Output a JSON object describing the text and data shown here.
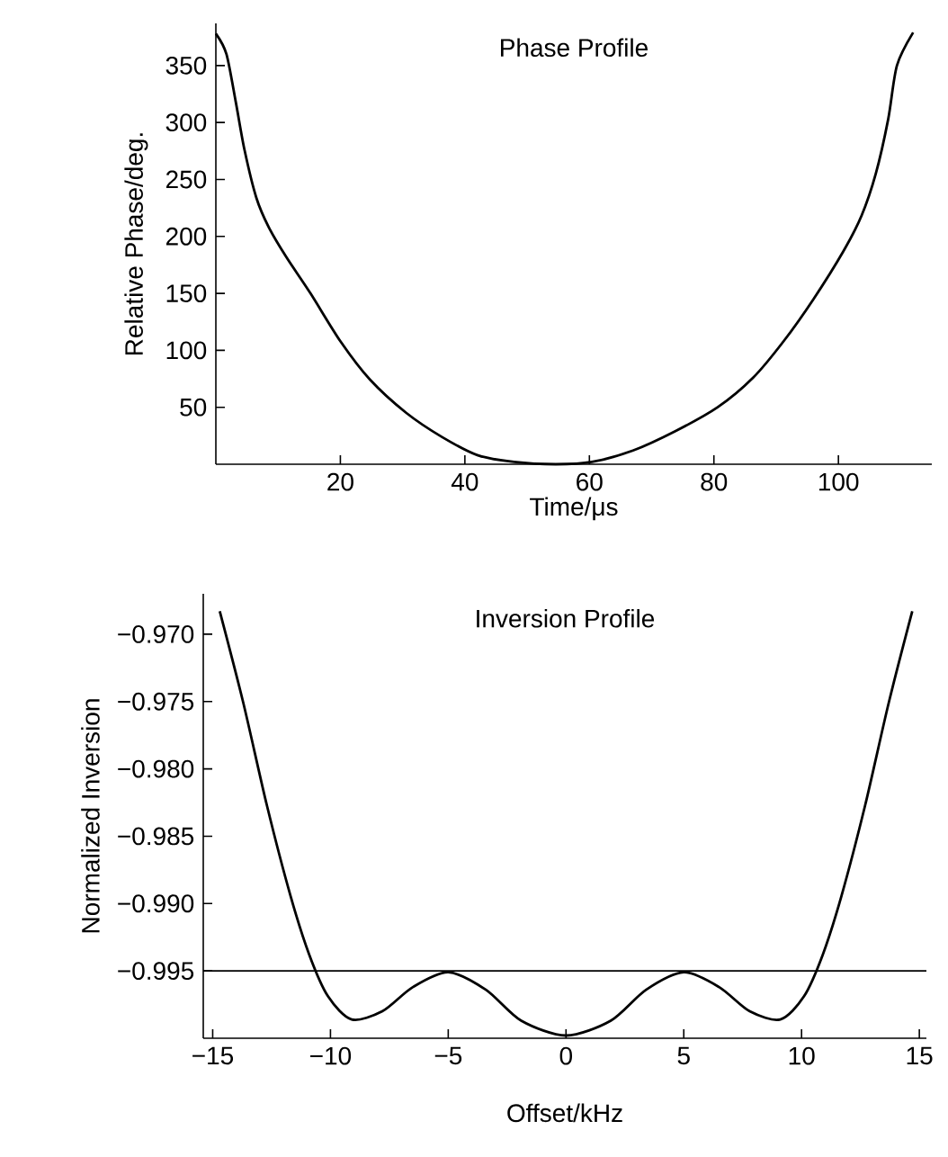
{
  "chart_data": [
    {
      "type": "line",
      "title": "Phase Profile",
      "xlabel": "Time/μs",
      "ylabel": "Relative Phase/deg.",
      "color": "#000000",
      "x": [
        0,
        1.7,
        3.2,
        4.6,
        6.5,
        8.5,
        11.3,
        15.2,
        20,
        24.8,
        30.6,
        36.3,
        42,
        47.9,
        54.6,
        60.4,
        67,
        73.8,
        80.6,
        86.3,
        91.2,
        96,
        100.8,
        103.7,
        106,
        108,
        109.4,
        112
      ],
      "values": [
        378,
        360,
        318,
        276,
        234,
        208,
        182,
        150,
        108,
        74,
        45,
        24,
        8,
        2,
        0,
        2,
        12,
        29,
        50,
        76,
        108,
        145,
        187,
        218,
        255,
        303,
        350,
        379
      ],
      "xlim": [
        0,
        115
      ],
      "ylim": [
        0,
        387
      ],
      "xticks": [
        20,
        40,
        60,
        80,
        100
      ],
      "yticks": [
        50,
        100,
        150,
        200,
        250,
        300,
        350
      ]
    },
    {
      "type": "line",
      "title": "Inversion Profile",
      "xlabel": "Offset/kHz",
      "ylabel": "Normalized Inversion",
      "color": "#000000",
      "x": [
        -14.7,
        -13.7,
        -12.7,
        -11.7,
        -10.9,
        -10.1,
        -9.1,
        -7.8,
        -6.5,
        -5.0,
        -3.4,
        -1.9,
        0,
        1.9,
        3.4,
        5.0,
        6.5,
        7.8,
        9.1,
        10.1,
        10.9,
        11.7,
        12.7,
        13.7,
        14.7
      ],
      "values": [
        -0.9683,
        -0.9751,
        -0.9827,
        -0.9894,
        -0.9938,
        -0.9969,
        -0.9986,
        -0.998,
        -0.9962,
        -0.9951,
        -0.9964,
        -0.9987,
        -0.9998,
        -0.9987,
        -0.9964,
        -0.9951,
        -0.9962,
        -0.998,
        -0.9986,
        -0.9969,
        -0.9938,
        -0.9894,
        -0.9827,
        -0.9751,
        -0.9683
      ],
      "xlim": [
        -15.4,
        15.3
      ],
      "ylim": [
        -1.0,
        -0.967
      ],
      "xticks": [
        {
          "value": -15,
          "label": "−15"
        },
        {
          "value": -10,
          "label": "−10"
        },
        {
          "value": -5,
          "label": "−5"
        },
        0,
        5,
        10,
        15
      ],
      "yticks": [
        {
          "value": -0.97,
          "label": "−0.970"
        },
        {
          "value": -0.975,
          "label": "−0.975"
        },
        {
          "value": -0.98,
          "label": "−0.980"
        },
        {
          "value": -0.985,
          "label": "−0.985"
        },
        {
          "value": -0.99,
          "label": "−0.990"
        },
        {
          "value": -0.995,
          "label": "−0.995"
        }
      ],
      "ref_lines": [
        {
          "axis": "y",
          "value": -0.995,
          "color": "#000000"
        }
      ]
    }
  ]
}
